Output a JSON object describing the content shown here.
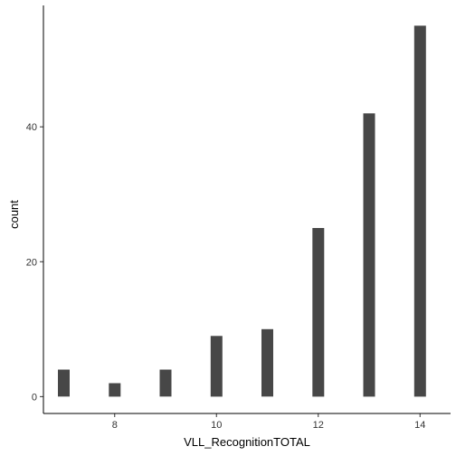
{
  "chart_data": {
    "type": "bar",
    "xlabel": "VLL_RecognitionTOTAL",
    "ylabel": "count",
    "x": [
      7,
      8,
      9,
      10,
      11,
      12,
      13,
      14
    ],
    "values": [
      4,
      2,
      4,
      9,
      10,
      25,
      42,
      55
    ],
    "xlim": [
      6.6,
      14.6
    ],
    "ylim": [
      -2.5,
      58
    ],
    "xticks": [
      8,
      10,
      12,
      14
    ],
    "yticks": [
      0,
      20,
      40
    ],
    "bar_color": "#474747",
    "grid": false
  }
}
